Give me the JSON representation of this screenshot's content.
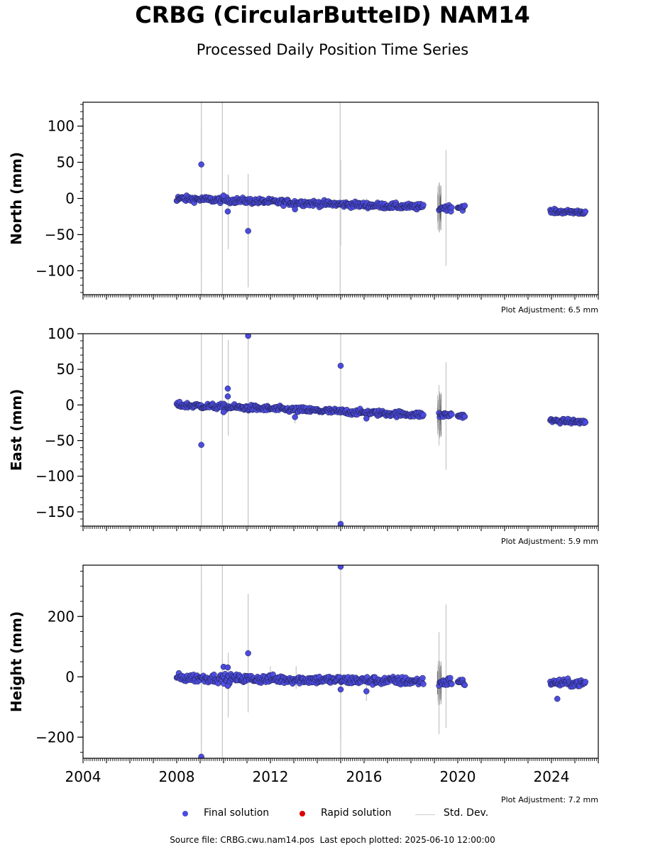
{
  "title": "CRBG (CircularButteID) NAM14",
  "subtitle": "Processed Daily Position Time Series",
  "legend": {
    "final": "Final solution",
    "rapid": "Rapid solution",
    "stddev": "Std. Dev."
  },
  "source": {
    "file": "Source file: CRBG.cwu.nam14.pos",
    "last_epoch": "Last epoch plotted: 2025-06-10 12:00:00"
  },
  "colors": {
    "final": "#4b4bdf",
    "final_edge": "#1a1a3a",
    "rapid": "#dd0000",
    "stddev": "#c8c8c8",
    "stddev_dense": "#555555"
  },
  "chart_data": [
    {
      "type": "scatter",
      "ylabel": "North (mm)",
      "xlim": [
        2004,
        2026
      ],
      "ylim": [
        -133,
        133
      ],
      "yticks": [
        100,
        50,
        0,
        -50,
        -100
      ],
      "xticks": [],
      "adjustment": "Plot Adjustment: 6.5 mm",
      "segments": [
        {
          "x0": 2008.0,
          "x1": 2018.55,
          "y0": 0,
          "y1": -12,
          "noise": 2
        },
        {
          "x0": 2019.2,
          "x1": 2019.75,
          "y0": -13,
          "y1": -13,
          "noise": 2
        },
        {
          "x0": 2020.0,
          "x1": 2020.3,
          "y0": -12,
          "y1": -12,
          "noise": 2
        },
        {
          "x0": 2023.95,
          "x1": 2025.45,
          "y0": -18,
          "y1": -19,
          "noise": 1.5
        }
      ],
      "outliers": [
        {
          "x": 2009.05,
          "y": 47
        },
        {
          "x": 2010.0,
          "y": 4
        },
        {
          "x": 2010.18,
          "y": -18
        },
        {
          "x": 2011.05,
          "y": -45
        },
        {
          "x": 2013.05,
          "y": -15
        }
      ],
      "errorbars": [
        {
          "x": 2009.05,
          "lo": -133,
          "hi": 133
        },
        {
          "x": 2009.05,
          "lo": -103,
          "hi": 100
        },
        {
          "x": 2009.95,
          "lo": -133,
          "hi": 133
        },
        {
          "x": 2010.2,
          "lo": -70,
          "hi": 33
        },
        {
          "x": 2011.05,
          "lo": -123,
          "hi": 34
        },
        {
          "x": 2014.98,
          "lo": -133,
          "hi": 133
        },
        {
          "x": 2015.0,
          "lo": -65,
          "hi": 53
        },
        {
          "x": 2016.1,
          "lo": -15,
          "hi": 0
        },
        {
          "x": 2019.2,
          "lo": -45,
          "hi": 22
        },
        {
          "x": 2019.5,
          "lo": -93,
          "hi": 67
        }
      ]
    },
    {
      "type": "scatter",
      "ylabel": "East (mm)",
      "xlim": [
        2004,
        2026
      ],
      "ylim": [
        -170,
        100
      ],
      "yticks": [
        100,
        50,
        0,
        -50,
        -100,
        -150
      ],
      "xticks": [],
      "adjustment": "Plot Adjustment: 5.9 mm",
      "segments": [
        {
          "x0": 2008.0,
          "x1": 2018.55,
          "y0": 0,
          "y1": -14,
          "noise": 2
        },
        {
          "x0": 2019.2,
          "x1": 2019.75,
          "y0": -14,
          "y1": -14,
          "noise": 2
        },
        {
          "x0": 2020.0,
          "x1": 2020.3,
          "y0": -15,
          "y1": -15,
          "noise": 1.5
        },
        {
          "x0": 2023.95,
          "x1": 2025.45,
          "y0": -22,
          "y1": -24,
          "noise": 1.5
        }
      ],
      "outliers": [
        {
          "x": 2009.05,
          "y": -56
        },
        {
          "x": 2010.0,
          "y": -10
        },
        {
          "x": 2010.18,
          "y": 23
        },
        {
          "x": 2010.18,
          "y": 12
        },
        {
          "x": 2011.05,
          "y": 97
        },
        {
          "x": 2013.05,
          "y": -17
        },
        {
          "x": 2015.0,
          "y": 55
        },
        {
          "x": 2015.0,
          "y": -167
        },
        {
          "x": 2016.1,
          "y": -19
        }
      ],
      "errorbars": [
        {
          "x": 2009.05,
          "lo": -170,
          "hi": 100
        },
        {
          "x": 2009.95,
          "lo": -170,
          "hi": 100
        },
        {
          "x": 2010.2,
          "lo": -43,
          "hi": 91
        },
        {
          "x": 2011.05,
          "lo": -170,
          "hi": 100
        },
        {
          "x": 2015.0,
          "lo": -170,
          "hi": 100
        },
        {
          "x": 2013.05,
          "lo": -26,
          "hi": -8
        },
        {
          "x": 2019.2,
          "lo": -57,
          "hi": 28
        },
        {
          "x": 2019.5,
          "lo": -91,
          "hi": 60
        }
      ]
    },
    {
      "type": "scatter",
      "ylabel": "Height (mm)",
      "xlim": [
        2004,
        2026
      ],
      "ylim": [
        -270,
        370
      ],
      "yticks": [
        200,
        0,
        -200
      ],
      "xticks": [
        "2004",
        "2008",
        "2012",
        "2016",
        "2020",
        "2024"
      ],
      "adjustment": "Plot Adjustment: 7.2 mm",
      "segments": [
        {
          "x0": 2008.0,
          "x1": 2018.55,
          "y0": -3,
          "y1": -15,
          "noise": 7
        },
        {
          "x0": 2019.2,
          "x1": 2019.75,
          "y0": -20,
          "y1": -15,
          "noise": 7
        },
        {
          "x0": 2020.0,
          "x1": 2020.3,
          "y0": -15,
          "y1": -20,
          "noise": 6
        },
        {
          "x0": 2023.95,
          "x1": 2025.45,
          "y0": -20,
          "y1": -22,
          "noise": 6
        }
      ],
      "outliers": [
        {
          "x": 2009.05,
          "y": -265
        },
        {
          "x": 2010.0,
          "y": 33
        },
        {
          "x": 2010.18,
          "y": 31
        },
        {
          "x": 2010.18,
          "y": -30
        },
        {
          "x": 2011.05,
          "y": 78
        },
        {
          "x": 2015.0,
          "y": 365
        },
        {
          "x": 2015.0,
          "y": -42
        },
        {
          "x": 2016.1,
          "y": -48
        },
        {
          "x": 2024.25,
          "y": -73
        }
      ],
      "errorbars": [
        {
          "x": 2009.05,
          "lo": -270,
          "hi": 370
        },
        {
          "x": 2009.05,
          "lo": -220,
          "hi": 290
        },
        {
          "x": 2009.95,
          "lo": -270,
          "hi": 370
        },
        {
          "x": 2010.2,
          "lo": -135,
          "hi": 80
        },
        {
          "x": 2011.05,
          "lo": -118,
          "hi": 275
        },
        {
          "x": 2015.0,
          "lo": -270,
          "hi": 370
        },
        {
          "x": 2015.0,
          "lo": -205,
          "hi": 125
        },
        {
          "x": 2016.1,
          "lo": -80,
          "hi": -20
        },
        {
          "x": 2012.0,
          "lo": -20,
          "hi": 35
        },
        {
          "x": 2013.1,
          "lo": -40,
          "hi": 35
        },
        {
          "x": 2019.2,
          "lo": -190,
          "hi": 148
        },
        {
          "x": 2019.5,
          "lo": -170,
          "hi": 240
        }
      ]
    }
  ]
}
